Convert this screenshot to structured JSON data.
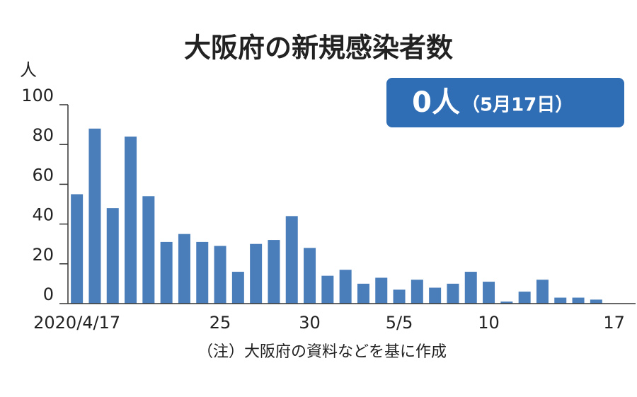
{
  "chart_data": {
    "type": "bar",
    "title": "大阪府の新規感染者数",
    "y_unit": "人",
    "badge": {
      "count": "0人",
      "date": "（5月17日）"
    },
    "note": "（注）大阪府の資料などを基に作成",
    "categories": [
      "2020/4/17",
      null,
      null,
      null,
      null,
      null,
      null,
      null,
      "25",
      null,
      null,
      null,
      null,
      "30",
      null,
      null,
      null,
      null,
      "5/5",
      null,
      null,
      null,
      null,
      "10",
      null,
      null,
      null,
      null,
      null,
      null,
      "17"
    ],
    "values": [
      55,
      88,
      48,
      84,
      54,
      31,
      35,
      31,
      29,
      16,
      30,
      32,
      44,
      28,
      14,
      17,
      10,
      13,
      7,
      12,
      8,
      10,
      16,
      11,
      1,
      6,
      12,
      3,
      3,
      2,
      0
    ],
    "color": "#4a7ebb",
    "ylim": [
      0,
      100
    ],
    "yticks": [
      0,
      20,
      40,
      60,
      80,
      100
    ]
  }
}
